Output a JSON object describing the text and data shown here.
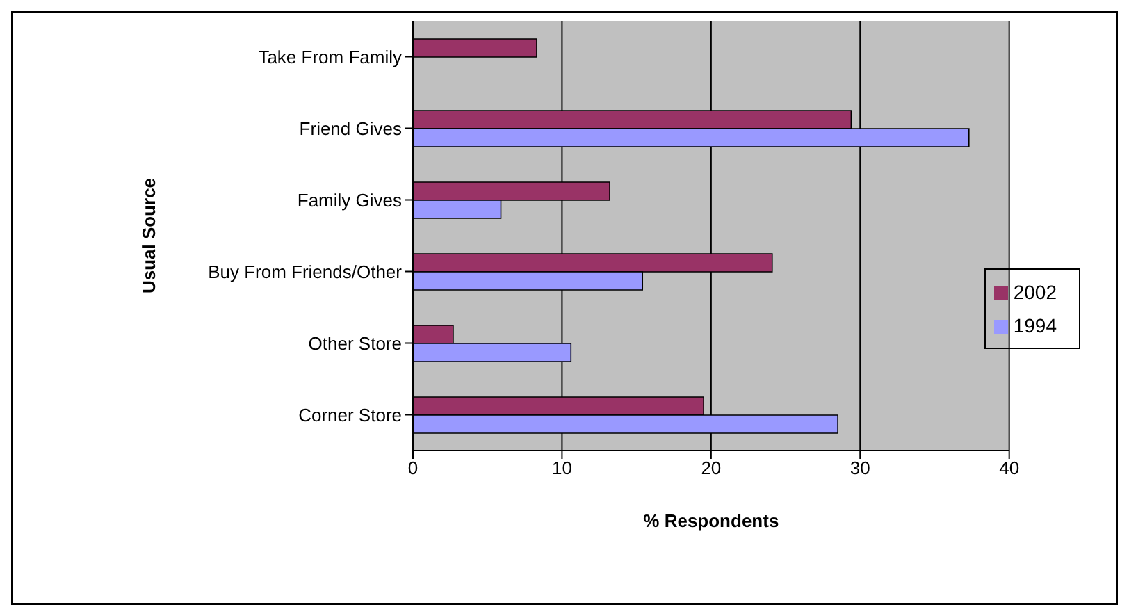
{
  "chart_data": {
    "type": "bar",
    "orientation": "horizontal",
    "xlabel": "% Respondents",
    "ylabel": "Usual Source",
    "categories": [
      "Take From Family",
      "Friend Gives",
      "Family Gives",
      "Buy From Friends/Other",
      "Other Store",
      "Corner Store"
    ],
    "series": [
      {
        "name": "2002",
        "color": "#993366",
        "values": [
          8.3,
          29.4,
          13.2,
          24.1,
          2.7,
          19.5
        ]
      },
      {
        "name": "1994",
        "color": "#9999ff",
        "values": [
          null,
          37.3,
          5.9,
          15.4,
          10.6,
          28.5
        ]
      }
    ],
    "xlim": [
      0,
      40
    ],
    "xticks": [
      0,
      10,
      20,
      30,
      40
    ],
    "grid": "x",
    "legend": "right"
  }
}
